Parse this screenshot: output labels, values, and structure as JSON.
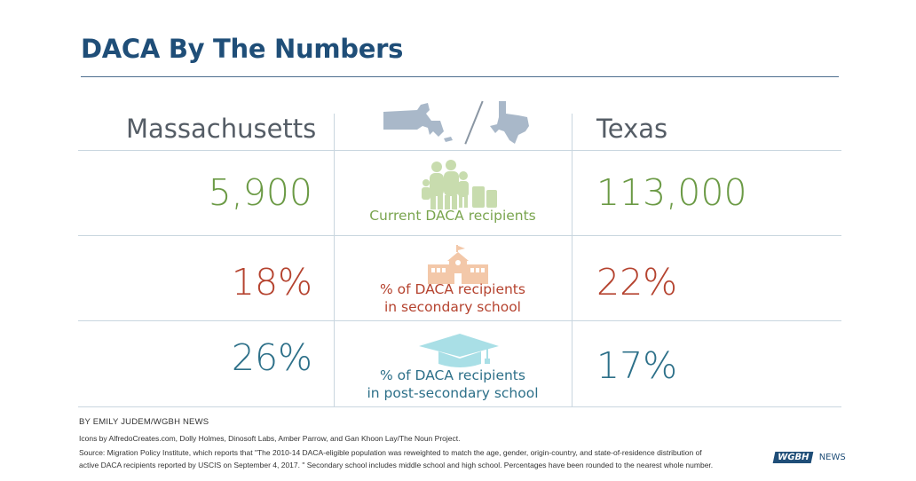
{
  "title": "DACA By The Numbers",
  "columns": {
    "left": "Massachusetts",
    "right": "Texas"
  },
  "rows": [
    {
      "left": "5,900",
      "right": "113,000",
      "label_1": "Current DACA recipients",
      "label_2": "",
      "color": "#6b9a45",
      "label_color": "#7aa54f",
      "icon": "family-icon"
    },
    {
      "left": "18%",
      "right": "22%",
      "label_1": "% of DACA recipients",
      "label_2": "in secondary school",
      "color": "#b5432f",
      "label_color": "#b5432f",
      "icon": "school-building-icon"
    },
    {
      "left": "26%",
      "right": "17%",
      "label_1": "% of DACA recipients",
      "label_2": "in post-secondary school",
      "color": "#2d7089",
      "label_color": "#2d7089",
      "icon": "graduation-cap-icon"
    }
  ],
  "footer": {
    "byline": "BY EMILY JUDEM/WGBH NEWS",
    "credits": "Icons by AlfredoCreates.com, Dolly Holmes, Dinosoft Labs, Amber Parrow, and Gan Khoon Lay/The Noun Project.",
    "source_1": "Source: Migration Policy Institute, which reports that \"The 2010-14 DACA-eligible population was reweighted to match the age, gender, origin-country, and state-of-residence distribution of",
    "source_2": "active DACA recipients reported by USCIS on September 4, 2017. \" Secondary school includes middle school and high school. Percentages have been rounded to the nearest whole number."
  },
  "logo": {
    "brand": "WGBH",
    "text": "NEWS"
  },
  "colors": {
    "title": "#1f4e78",
    "grid": "#c9d6df",
    "state_map": "#a9b8c9",
    "family": "#c8dcae",
    "school": "#f3c8a9",
    "cap": "#a9dfe6"
  }
}
